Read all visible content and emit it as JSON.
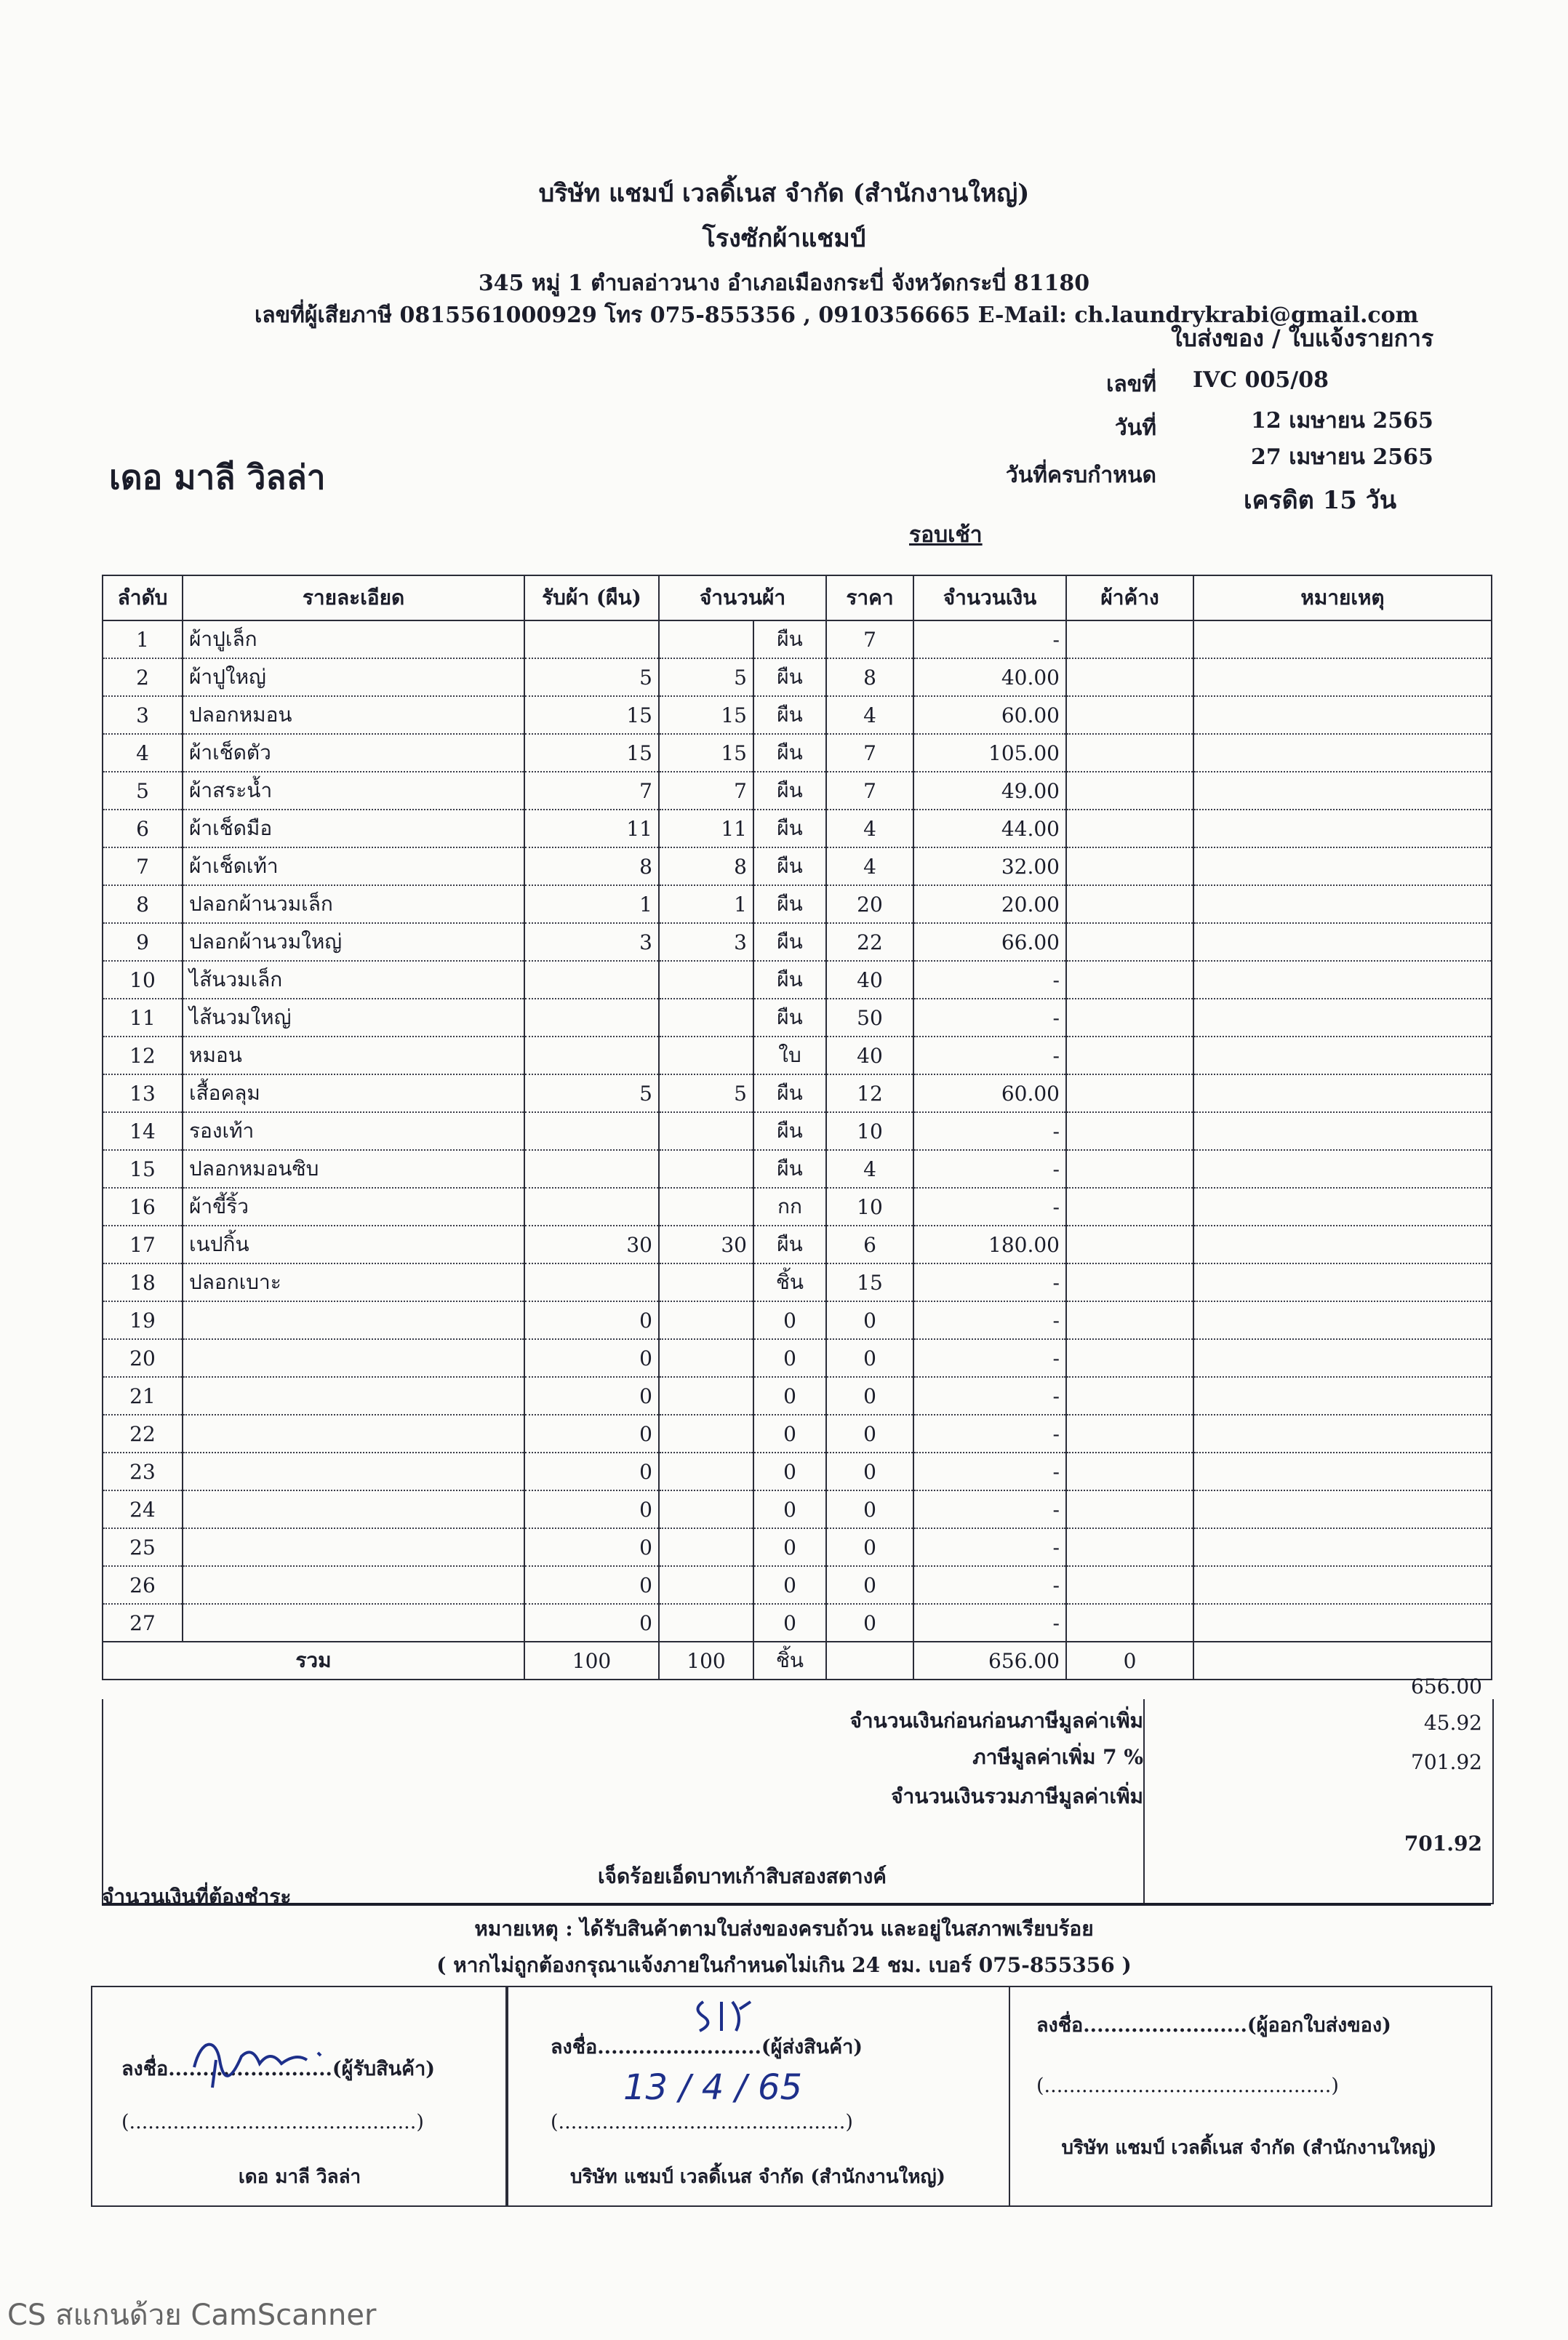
{
  "company": {
    "name": "บริษัท แชมป์ เวลดิ้เนส จำกัด (สำนักงานใหญ่)",
    "subtitle": "โรงซักผ้าแชมป์",
    "address": "345 หมู่ 1 ตำบลอ่าวนาง อำเภอเมืองกระบี่ จังหวัดกระบี่ 81180",
    "contact": "เลขที่ผู้เสียภาษี 0815561000929 โทร 075-855356 , 0910356665  E-Mail: ch.laundrykrabi@gmail.com"
  },
  "document": {
    "type": "ใบส่งของ / ใบแจ้งรายการ",
    "number_label": "เลขที่",
    "number": "IVC 005/08",
    "date_label": "วันที่",
    "date": "12 เมษายน 2565",
    "due_label": "วันที่ครบกำหนด",
    "due_date": "27 เมษายน 2565",
    "credit": "เครดิต 15 วัน",
    "round": "รอบเช้า"
  },
  "customer": "เดอ มาลี วิลล่า",
  "table": {
    "headers": [
      "ลำดับ",
      "รายละเอียด",
      "รับผ้า (ผืน)",
      "จำนวนผ้า",
      "ราคา",
      "จำนวนเงิน",
      "ผ้าค้าง",
      "หมายเหตุ"
    ],
    "rows": [
      {
        "no": "1",
        "item": "ผ้าปูเล็ก",
        "received": "",
        "qty": "",
        "unit": "ผืน",
        "price": "7",
        "amount": "-"
      },
      {
        "no": "2",
        "item": "ผ้าปูใหญ่",
        "received": "5",
        "qty": "5",
        "unit": "ผืน",
        "price": "8",
        "amount": "40.00"
      },
      {
        "no": "3",
        "item": "ปลอกหมอน",
        "received": "15",
        "qty": "15",
        "unit": "ผืน",
        "price": "4",
        "amount": "60.00"
      },
      {
        "no": "4",
        "item": "ผ้าเช็ดตัว",
        "received": "15",
        "qty": "15",
        "unit": "ผืน",
        "price": "7",
        "amount": "105.00"
      },
      {
        "no": "5",
        "item": "ผ้าสระน้ำ",
        "received": "7",
        "qty": "7",
        "unit": "ผืน",
        "price": "7",
        "amount": "49.00"
      },
      {
        "no": "6",
        "item": "ผ้าเช็ดมือ",
        "received": "11",
        "qty": "11",
        "unit": "ผืน",
        "price": "4",
        "amount": "44.00"
      },
      {
        "no": "7",
        "item": "ผ้าเช็ดเท้า",
        "received": "8",
        "qty": "8",
        "unit": "ผืน",
        "price": "4",
        "amount": "32.00"
      },
      {
        "no": "8",
        "item": "ปลอกผ้านวมเล็ก",
        "received": "1",
        "qty": "1",
        "unit": "ผืน",
        "price": "20",
        "amount": "20.00"
      },
      {
        "no": "9",
        "item": "ปลอกผ้านวมใหญ่",
        "received": "3",
        "qty": "3",
        "unit": "ผืน",
        "price": "22",
        "amount": "66.00"
      },
      {
        "no": "10",
        "item": "ไส้นวมเล็ก",
        "received": "",
        "qty": "",
        "unit": "ผืน",
        "price": "40",
        "amount": "-"
      },
      {
        "no": "11",
        "item": "ไส้นวมใหญ่",
        "received": "",
        "qty": "",
        "unit": "ผืน",
        "price": "50",
        "amount": "-"
      },
      {
        "no": "12",
        "item": "หมอน",
        "received": "",
        "qty": "",
        "unit": "ใบ",
        "price": "40",
        "amount": "-"
      },
      {
        "no": "13",
        "item": "เสื้อคลุม",
        "received": "5",
        "qty": "5",
        "unit": "ผืน",
        "price": "12",
        "amount": "60.00"
      },
      {
        "no": "14",
        "item": "รองเท้า",
        "received": "",
        "qty": "",
        "unit": "ผืน",
        "price": "10",
        "amount": "-"
      },
      {
        "no": "15",
        "item": "ปลอกหมอนซิบ",
        "received": "",
        "qty": "",
        "unit": "ผืน",
        "price": "4",
        "amount": "-"
      },
      {
        "no": "16",
        "item": "ผ้าขี้ริ้ว",
        "received": "",
        "qty": "",
        "unit": "กก",
        "price": "10",
        "amount": "-"
      },
      {
        "no": "17",
        "item": "เนปกิ้น",
        "received": "30",
        "qty": "30",
        "unit": "ผืน",
        "price": "6",
        "amount": "180.00"
      },
      {
        "no": "18",
        "item": "ปลอกเบาะ",
        "received": "",
        "qty": "",
        "unit": "ชิ้น",
        "price": "15",
        "amount": "-"
      },
      {
        "no": "19",
        "item": "",
        "received": "0",
        "qty": "",
        "unit": "0",
        "price": "0",
        "amount": "-"
      },
      {
        "no": "20",
        "item": "",
        "received": "0",
        "qty": "",
        "unit": "0",
        "price": "0",
        "amount": "-"
      },
      {
        "no": "21",
        "item": "",
        "received": "0",
        "qty": "",
        "unit": "0",
        "price": "0",
        "amount": "-"
      },
      {
        "no": "22",
        "item": "",
        "received": "0",
        "qty": "",
        "unit": "0",
        "price": "0",
        "amount": "-"
      },
      {
        "no": "23",
        "item": "",
        "received": "0",
        "qty": "",
        "unit": "0",
        "price": "0",
        "amount": "-"
      },
      {
        "no": "24",
        "item": "",
        "received": "0",
        "qty": "",
        "unit": "0",
        "price": "0",
        "amount": "-"
      },
      {
        "no": "25",
        "item": "",
        "received": "0",
        "qty": "",
        "unit": "0",
        "price": "0",
        "amount": "-"
      },
      {
        "no": "26",
        "item": "",
        "received": "0",
        "qty": "",
        "unit": "0",
        "price": "0",
        "amount": "-"
      },
      {
        "no": "27",
        "item": "",
        "received": "0",
        "qty": "",
        "unit": "0",
        "price": "0",
        "amount": "-"
      }
    ],
    "total": {
      "label": "รวม",
      "received": "100",
      "qty": "100",
      "unit": "ชิ้น",
      "amount": "656.00",
      "pending": "0"
    }
  },
  "summary": {
    "subtotal_label": "จำนวนเงินก่อนก่อนภาษีมูลค่าเพิ่ม",
    "subtotal": "656.00",
    "vat_label": "ภาษีมูลค่าเพิ่ม 7 %",
    "vat": "45.92",
    "grand_label": "จำนวนเงินรวมภาษีมูลค่าเพิ่ม",
    "grand": "701.92",
    "payable_label": "จำนวนเงินที่ต้องชำระ",
    "payable_text": "เจ็ดร้อยเอ็ดบาทเก้าสิบสองสตางค์",
    "payable": "701.92"
  },
  "notes": {
    "line1": "หมายเหตุ : ได้รับสินค้าตามใบส่งของครบถ้วน และอยู่ในสภาพเรียบร้อย",
    "line2": "( หากไม่ถูกต้องกรุณาแจ้งภายในกำหนดไม่เกิน 24 ชม. เบอร์ 075-855356 )"
  },
  "signatures": [
    {
      "label": "ลงชื่อ........................(ผู้รับสินค้า)",
      "paren": "(..............................................)",
      "company": "เดอ มาลี วิลล่า"
    },
    {
      "label": "ลงชื่อ........................(ผู้ส่งสินค้า)",
      "paren": "(..............................................)",
      "handwritten_date": "13 / 4 / 65",
      "company": "บริษัท แชมป์ เวลดิ้เนส จำกัด (สำนักงานใหญ่)"
    },
    {
      "label": "ลงชื่อ........................(ผู้ออกใบส่งของ)",
      "paren": "(..............................................)",
      "company": "บริษัท แชมป์ เวลดิ้เนส จำกัด (สำนักงานใหญ่)"
    }
  ],
  "watermark": "CS สแกนด้วย CamScanner"
}
